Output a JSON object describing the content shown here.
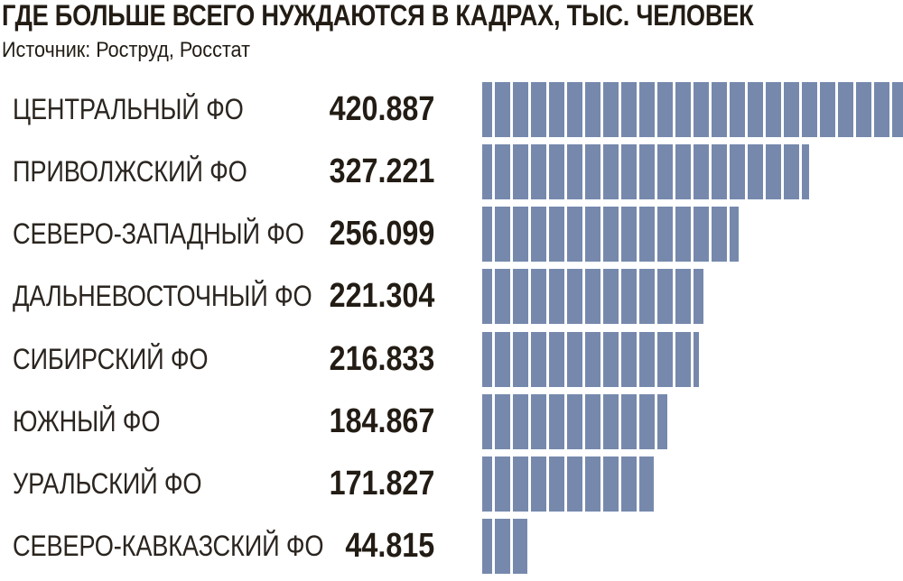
{
  "header": {
    "title": "ГДЕ БОЛЬШЕ ВСЕГО НУЖДАЮТСЯ В КАДРАХ, ТЫС. ЧЕЛОВЕК",
    "source": "Источник: Роструд, Росстат"
  },
  "colors": {
    "bar": "#7689ad",
    "title_text": "#221c14",
    "label_text": "#2b2520",
    "background": "#ffffff"
  },
  "chart_data": {
    "type": "bar",
    "orientation": "horizontal",
    "title": "ГДЕ БОЛЬШЕ ВСЕГО НУЖДАЮТСЯ В КАДРАХ, ТЫС. ЧЕЛОВЕК",
    "unit": "тыс. человек",
    "source": "Источник: Роструд, Росстат",
    "bar_style": "segmented-slats",
    "grid": false,
    "legend": false,
    "xlim": [
      0,
      420.887
    ],
    "categories": [
      "ЦЕНТРАЛЬНЫЙ ФО",
      "ПРИВОЛЖСКИЙ ФО",
      "СЕВЕРО-ЗАПАДНЫЙ ФО",
      "ДАЛЬНЕВОСТОЧНЫЙ ФО",
      "СИБИРСКИЙ ФО",
      "ЮЖНЫЙ ФО",
      "УРАЛЬСКИЙ ФО",
      "СЕВЕРО-КАВКАЗСКИЙ ФО"
    ],
    "values": [
      420.887,
      327.221,
      256.099,
      221.304,
      216.833,
      184.867,
      171.827,
      44.815
    ],
    "value_labels": [
      "420.887",
      "327.221",
      "256.099",
      "221.304",
      "216.833",
      "184.867",
      "171.827",
      "44.815"
    ]
  }
}
